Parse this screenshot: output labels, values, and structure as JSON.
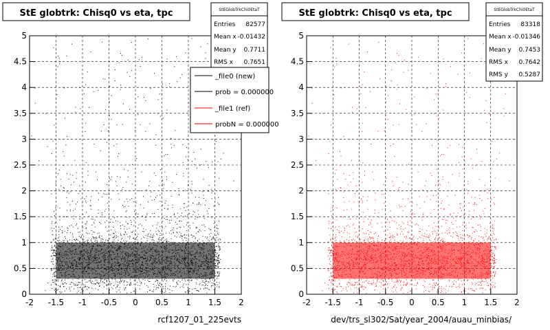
{
  "chart_data": [
    {
      "type": "scatter",
      "title": "StE globtrk: Chisq0 vs eta, tpc",
      "xlabel": "rcf1207_01_225evts",
      "ylabel": "",
      "xlim": [
        -2,
        2
      ],
      "ylim": [
        0,
        5
      ],
      "xticks": [
        "-2",
        "-1.5",
        "-1",
        "-0.5",
        "0",
        "0.5",
        "1",
        "1.5",
        "2"
      ],
      "yticks": [
        "0",
        "0.5",
        "1",
        "1.5",
        "2",
        "2.5",
        "3",
        "3.5",
        "4",
        "4.5",
        "5"
      ],
      "grid": true,
      "series": [
        {
          "color": "#000000",
          "x_range": [
            -1.6,
            1.6
          ],
          "dense_y_range": [
            0.2,
            1.3
          ],
          "peak_y": 0.6
        }
      ],
      "stats": {
        "name": "StEGlobTrkChi0EtaT",
        "entries_label": "Entries",
        "entries": "82577",
        "meanx_label": "Mean x",
        "meanx": "-0.01432",
        "meany_label": "Mean y",
        "meany": "0.7711",
        "rmsx_label": "RMS x",
        "rmsx": "0.7651"
      },
      "legend": {
        "position": "top-right",
        "entries": [
          {
            "label": "_file0 (new)",
            "color": "#000000"
          },
          {
            "label": "prob = 0.000000",
            "color": "#000000"
          },
          {
            "label": "_file1 (ref)",
            "color": "#ff0000"
          },
          {
            "label": "probN = 0.000000",
            "color": "#ff0000"
          }
        ]
      }
    },
    {
      "type": "scatter",
      "title": "StE globtrk: Chisq0 vs eta, tpc",
      "xlabel": "dev/trs_sl302/Sat/year_2004/auau_minbias/",
      "ylabel": "",
      "xlim": [
        -2,
        2
      ],
      "ylim": [
        0,
        5
      ],
      "xticks": [
        "-2",
        "-1.5",
        "-1",
        "-0.5",
        "0",
        "0.5",
        "1",
        "1.5",
        "2"
      ],
      "yticks": [
        "0",
        "0.5",
        "1",
        "1.5",
        "2",
        "2.5",
        "3",
        "3.5",
        "4",
        "4.5",
        "5"
      ],
      "grid": true,
      "series": [
        {
          "color": "#ff0000",
          "x_range": [
            -1.6,
            1.6
          ],
          "dense_y_range": [
            0.2,
            1.3
          ],
          "peak_y": 0.6
        }
      ],
      "stats": {
        "name": "StEGlobTrkChi0EtaT",
        "entries_label": "Entries",
        "entries": "83318",
        "meanx_label": "Mean x",
        "meanx": "-0.01346",
        "meany_label": "Mean y",
        "meany": "0.7453",
        "rmsx_label": "RMS x",
        "rmsx": "0.7642",
        "rmsy_label": "RMS y",
        "rmsy": "0.5287"
      }
    }
  ]
}
